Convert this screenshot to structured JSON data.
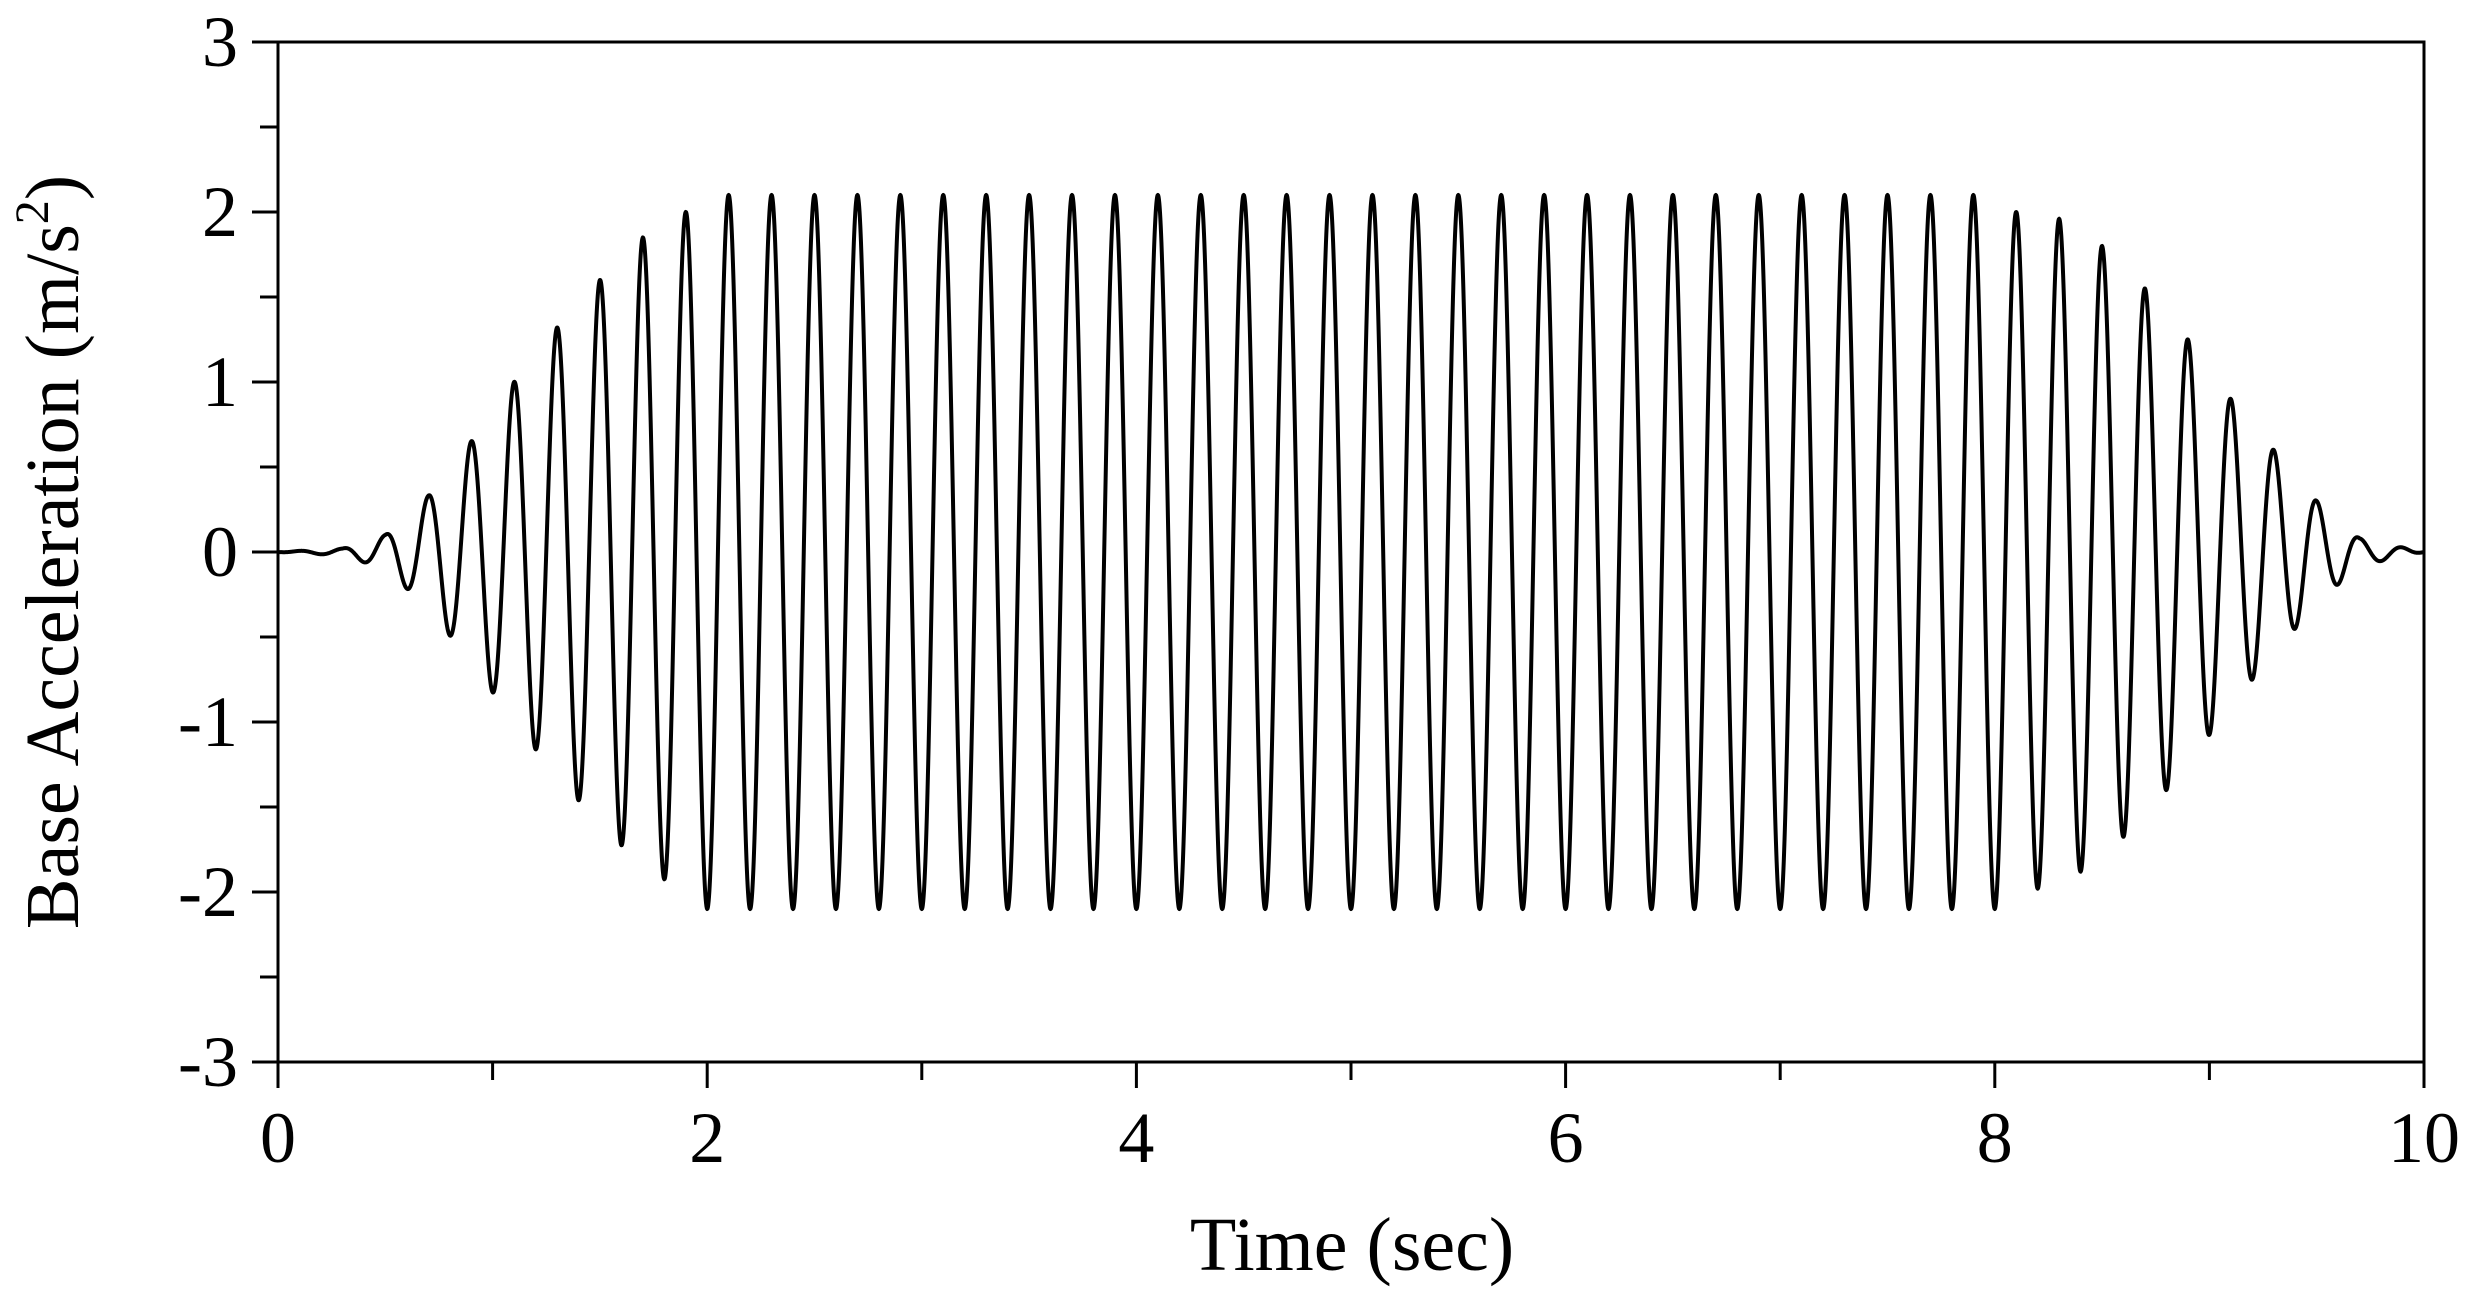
{
  "chart_data": {
    "type": "line",
    "title": "",
    "xlabel": "Time (sec)",
    "ylabel_main": "Base Acceleration (m/s",
    "ylabel_sup": "2",
    "ylabel_close": ")",
    "xlim": [
      0,
      10
    ],
    "ylim": [
      -3,
      3
    ],
    "x_ticks": [
      0,
      2,
      4,
      6,
      8,
      10
    ],
    "x_minor_step": 1,
    "y_ticks": [
      -3,
      -2,
      -1,
      0,
      1,
      2,
      3
    ],
    "y_minor_step": 0.5,
    "grid": false,
    "legend": "none",
    "line_color": "#000000",
    "series": [
      {
        "signal": "sinusoid",
        "frequency_hz": 5,
        "amplitude_m_s2": 2.1,
        "ramp_up_end_sec": 2.0,
        "ramp_down_start_sec": 8.0,
        "duration_sec": 10,
        "envelope": {
          "t": [
            0,
            0.3,
            0.5,
            0.7,
            0.9,
            1.1,
            1.3,
            1.5,
            1.7,
            1.9,
            2.0,
            8.0,
            8.1,
            8.3,
            8.5,
            8.7,
            8.9,
            9.1,
            9.3,
            9.5,
            9.7,
            10
          ],
          "amp": [
            0.0,
            0.02,
            0.1,
            0.33,
            0.65,
            1.0,
            1.32,
            1.6,
            1.85,
            2.0,
            2.1,
            2.1,
            2.0,
            1.96,
            1.8,
            1.55,
            1.25,
            0.9,
            0.6,
            0.3,
            0.08,
            0.0
          ]
        }
      }
    ]
  }
}
